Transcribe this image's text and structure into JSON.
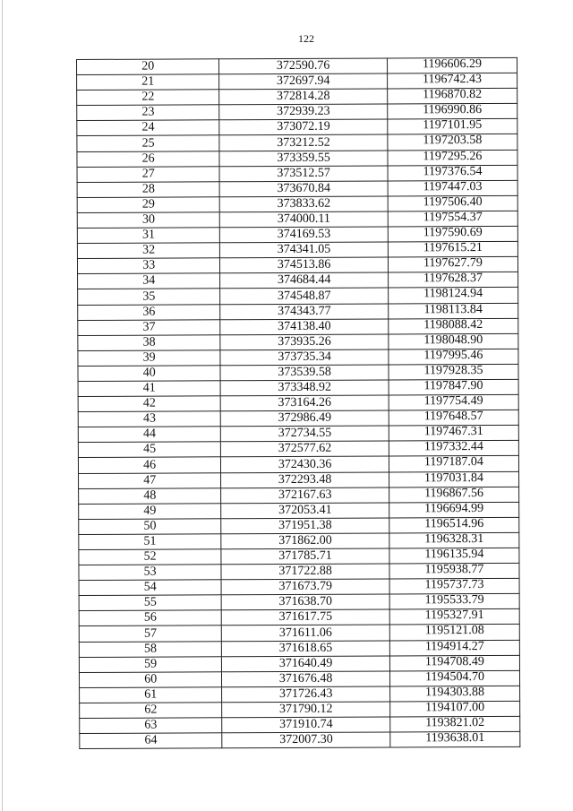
{
  "page_number": "122",
  "table": {
    "rows": [
      [
        "20",
        "372590.76",
        "1196606.29"
      ],
      [
        "21",
        "372697.94",
        "1196742.43"
      ],
      [
        "22",
        "372814.28",
        "1196870.82"
      ],
      [
        "23",
        "372939.23",
        "1196990.86"
      ],
      [
        "24",
        "373072.19",
        "1197101.95"
      ],
      [
        "25",
        "373212.52",
        "1197203.58"
      ],
      [
        "26",
        "373359.55",
        "1197295.26"
      ],
      [
        "27",
        "373512.57",
        "1197376.54"
      ],
      [
        "28",
        "373670.84",
        "1197447.03"
      ],
      [
        "29",
        "373833.62",
        "1197506.40"
      ],
      [
        "30",
        "374000.11",
        "1197554.37"
      ],
      [
        "31",
        "374169.53",
        "1197590.69"
      ],
      [
        "32",
        "374341.05",
        "1197615.21"
      ],
      [
        "33",
        "374513.86",
        "1197627.79"
      ],
      [
        "34",
        "374684.44",
        "1197628.37"
      ],
      [
        "35",
        "374548.87",
        "1198124.94"
      ],
      [
        "36",
        "374343.77",
        "1198113.84"
      ],
      [
        "37",
        "374138.40",
        "1198088.42"
      ],
      [
        "38",
        "373935.26",
        "1198048.90"
      ],
      [
        "39",
        "373735.34",
        "1197995.46"
      ],
      [
        "40",
        "373539.58",
        "1197928.35"
      ],
      [
        "41",
        "373348.92",
        "1197847.90"
      ],
      [
        "42",
        "373164.26",
        "1197754.49"
      ],
      [
        "43",
        "372986.49",
        "1197648.57"
      ],
      [
        "44",
        "372734.55",
        "1197467.31"
      ],
      [
        "45",
        "372577.62",
        "1197332.44"
      ],
      [
        "46",
        "372430.36",
        "1197187.04"
      ],
      [
        "47",
        "372293.48",
        "1197031.84"
      ],
      [
        "48",
        "372167.63",
        "1196867.56"
      ],
      [
        "49",
        "372053.41",
        "1196694.99"
      ],
      [
        "50",
        "371951.38",
        "1196514.96"
      ],
      [
        "51",
        "371862.00",
        "1196328.31"
      ],
      [
        "52",
        "371785.71",
        "1196135.94"
      ],
      [
        "53",
        "371722.88",
        "1195938.77"
      ],
      [
        "54",
        "371673.79",
        "1195737.73"
      ],
      [
        "55",
        "371638.70",
        "1195533.79"
      ],
      [
        "56",
        "371617.75",
        "1195327.91"
      ],
      [
        "57",
        "371611.06",
        "1195121.08"
      ],
      [
        "58",
        "371618.65",
        "1194914.27"
      ],
      [
        "59",
        "371640.49",
        "1194708.49"
      ],
      [
        "60",
        "371676.48",
        "1194504.70"
      ],
      [
        "61",
        "371726.43",
        "1194303.88"
      ],
      [
        "62",
        "371790.12",
        "1194107.00"
      ],
      [
        "63",
        "371910.74",
        "1193821.02"
      ],
      [
        "64",
        "372007.30",
        "1193638.01"
      ]
    ]
  }
}
